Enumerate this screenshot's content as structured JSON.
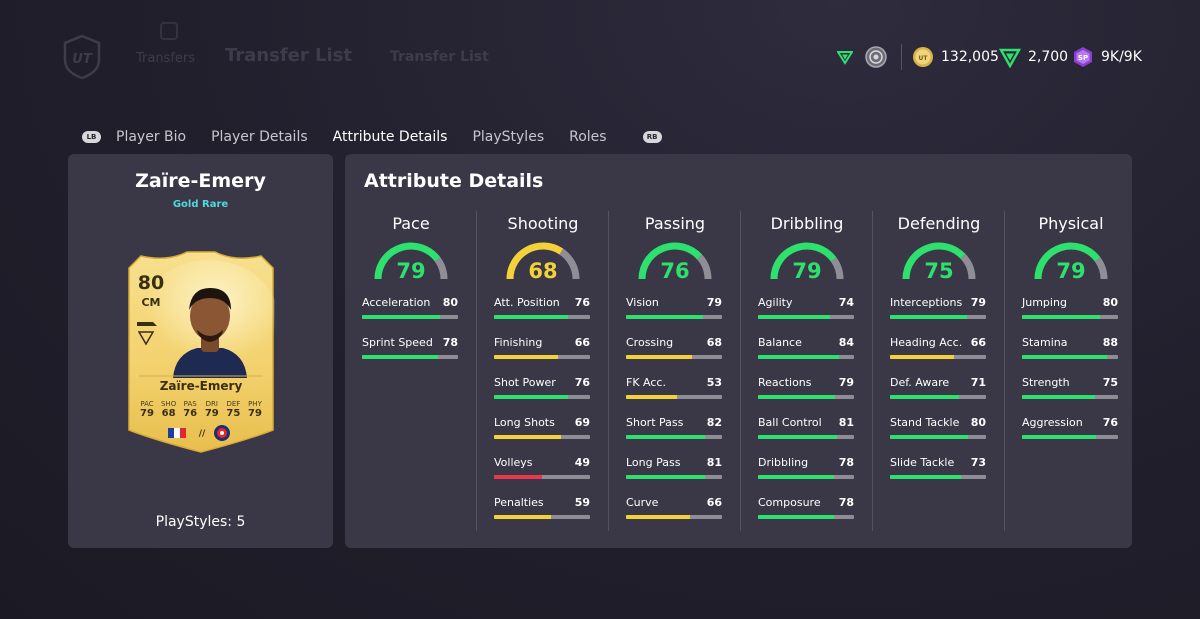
{
  "header": {
    "breadcrumb_small": "Transfers",
    "breadcrumb_title": "Transfer List",
    "breadcrumb_ghost": "Transfer List"
  },
  "currency": {
    "coins": "132,005",
    "points": "2,700",
    "sp": "9K/9K",
    "sp_badge": "SP"
  },
  "tabs": {
    "lb": "LB",
    "rb": "RB",
    "items": [
      "Player Bio",
      "Player Details",
      "Attribute Details",
      "PlayStyles",
      "Roles"
    ],
    "active": "Attribute Details"
  },
  "player": {
    "name": "Zaïre-Emery",
    "rarity": "Gold Rare",
    "playstyles": "PlayStyles: 5",
    "card": {
      "rating": "80",
      "position": "CM",
      "name": "Zaïre-Emery",
      "stats": [
        {
          "label": "PAC",
          "value": "79"
        },
        {
          "label": "SHO",
          "value": "68"
        },
        {
          "label": "PAS",
          "value": "76"
        },
        {
          "label": "DRI",
          "value": "79"
        },
        {
          "label": "DEF",
          "value": "75"
        },
        {
          "label": "PHY",
          "value": "79"
        }
      ]
    }
  },
  "attributes": {
    "title": "Attribute Details",
    "colors": {
      "high": "#2ee06d",
      "mid": "#f2d13a",
      "low": "#e8384f",
      "track": "#8f8e97"
    },
    "categories": [
      {
        "name": "Pace",
        "value": 79,
        "stats": [
          {
            "name": "Acceleration",
            "value": 80
          },
          {
            "name": "Sprint Speed",
            "value": 78
          }
        ]
      },
      {
        "name": "Shooting",
        "value": 68,
        "stats": [
          {
            "name": "Att. Position",
            "value": 76
          },
          {
            "name": "Finishing",
            "value": 66
          },
          {
            "name": "Shot Power",
            "value": 76
          },
          {
            "name": "Long Shots",
            "value": 69
          },
          {
            "name": "Volleys",
            "value": 49
          },
          {
            "name": "Penalties",
            "value": 59
          }
        ]
      },
      {
        "name": "Passing",
        "value": 76,
        "stats": [
          {
            "name": "Vision",
            "value": 79
          },
          {
            "name": "Crossing",
            "value": 68
          },
          {
            "name": "FK Acc.",
            "value": 53
          },
          {
            "name": "Short Pass",
            "value": 82
          },
          {
            "name": "Long Pass",
            "value": 81
          },
          {
            "name": "Curve",
            "value": 66
          }
        ]
      },
      {
        "name": "Dribbling",
        "value": 79,
        "stats": [
          {
            "name": "Agility",
            "value": 74
          },
          {
            "name": "Balance",
            "value": 84
          },
          {
            "name": "Reactions",
            "value": 79
          },
          {
            "name": "Ball Control",
            "value": 81
          },
          {
            "name": "Dribbling",
            "value": 78
          },
          {
            "name": "Composure",
            "value": 78
          }
        ]
      },
      {
        "name": "Defending",
        "value": 75,
        "stats": [
          {
            "name": "Interceptions",
            "value": 79
          },
          {
            "name": "Heading Acc.",
            "value": 66
          },
          {
            "name": "Def. Aware",
            "value": 71
          },
          {
            "name": "Stand Tackle",
            "value": 80
          },
          {
            "name": "Slide Tackle",
            "value": 73
          }
        ]
      },
      {
        "name": "Physical",
        "value": 79,
        "stats": [
          {
            "name": "Jumping",
            "value": 80
          },
          {
            "name": "Stamina",
            "value": 88
          },
          {
            "name": "Strength",
            "value": 75
          },
          {
            "name": "Aggression",
            "value": 76
          }
        ]
      }
    ]
  }
}
